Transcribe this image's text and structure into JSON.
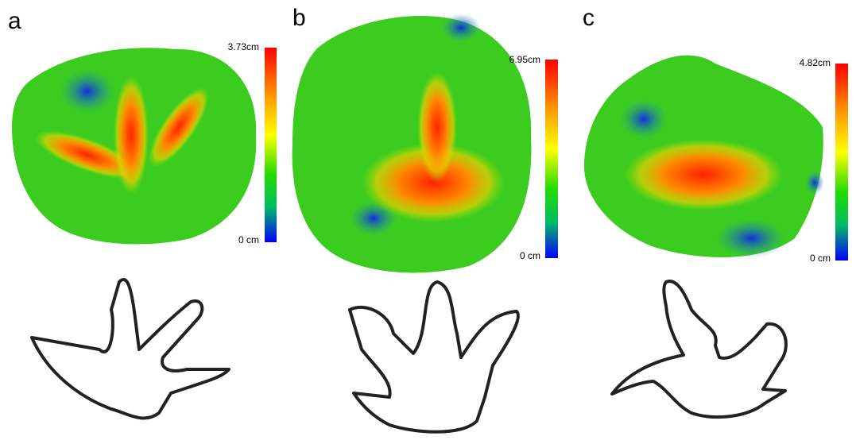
{
  "panels": [
    {
      "label": "a",
      "scale_max": "3.73cm",
      "scale_min": "0 cm"
    },
    {
      "label": "b",
      "scale_max": "6.95cm",
      "scale_min": "0 cm"
    },
    {
      "label": "c",
      "scale_max": "4.82cm",
      "scale_min": "0 cm"
    }
  ]
}
